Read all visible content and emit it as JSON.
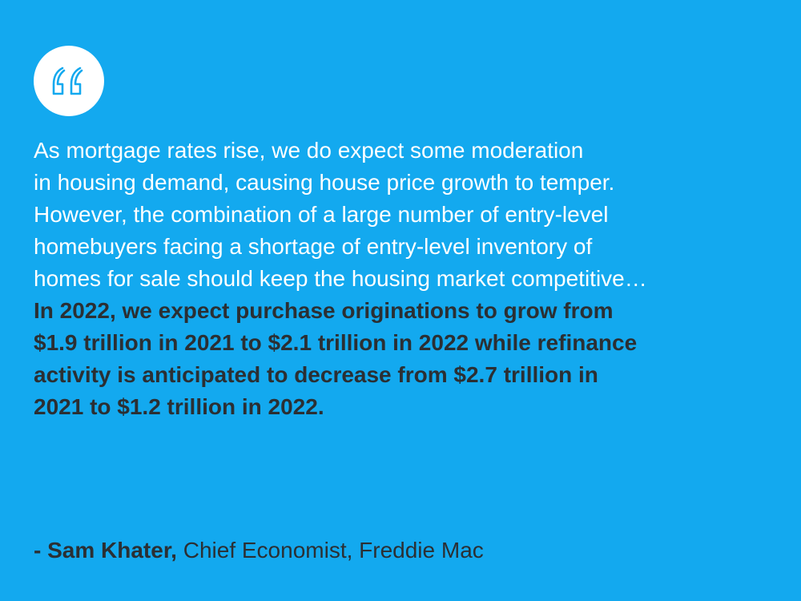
{
  "colors": {
    "background": "#13a9ef",
    "badge": "#ffffff",
    "quote_mark": "#13a9ef",
    "light_text": "#ffffff",
    "dark_text": "#2b2f33"
  },
  "badge": {
    "icon": "quote-mark-icon"
  },
  "quote": {
    "light_lines": [
      "As mortgage rates rise, we do expect some moderation",
      "in housing demand, causing house price growth to temper.",
      "However, the combination of a large number of entry-level",
      "homebuyers facing a shortage of entry-level inventory of",
      "homes for sale should keep the housing market competitive…"
    ],
    "bold_lines": [
      "In 2022, we expect purchase originations to grow from",
      "$1.9 trillion in 2021 to $2.1 trillion in 2022 while refinance",
      "activity is anticipated to decrease from $2.7 trillion in",
      "2021 to $1.2 trillion in 2022."
    ]
  },
  "attribution": {
    "name": "- Sam Khater,",
    "title": "Chief Economist, Freddie Mac"
  }
}
